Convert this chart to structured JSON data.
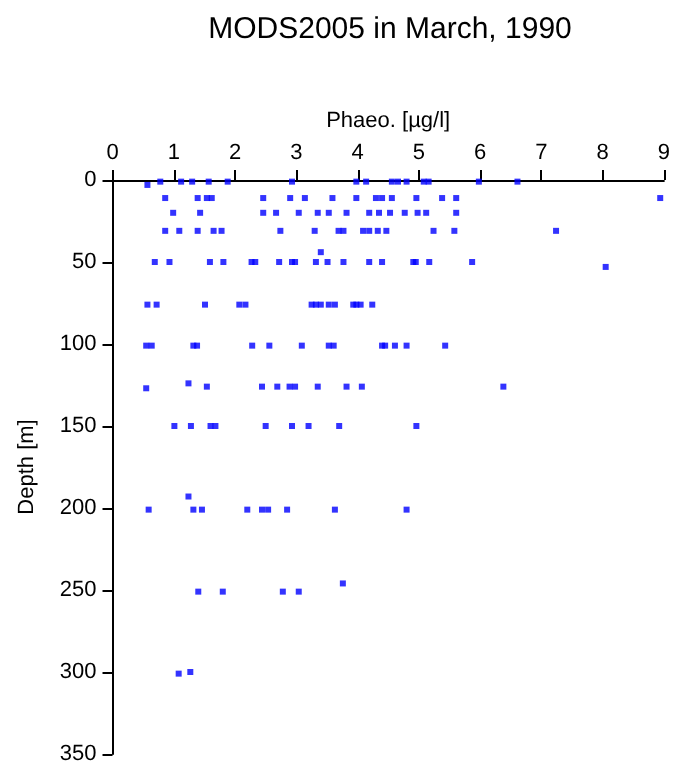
{
  "chart_data": {
    "type": "scatter",
    "title": "MODS2005 in March, 1990",
    "xlabel": "Phaeo. [µg/l]",
    "ylabel": "Depth [m]",
    "xlim": [
      0,
      9
    ],
    "xticks": [
      0,
      1,
      2,
      3,
      4,
      5,
      6,
      7,
      8,
      9
    ],
    "ylim": [
      350,
      0
    ],
    "yticks": [
      0,
      50,
      100,
      150,
      200,
      250,
      300,
      350
    ],
    "grid": false,
    "marker": "square",
    "series": [
      {
        "color": "#0000ff",
        "x": [
          0.57,
          0.78,
          1.12,
          1.3,
          1.57,
          1.88,
          2.93,
          3.98,
          4.14,
          4.56,
          4.66,
          4.8,
          5.08,
          5.16,
          5.98,
          6.61,
          0.86,
          1.39,
          1.54,
          1.62,
          2.46,
          2.9,
          3.14,
          3.59,
          3.98,
          4.3,
          4.4,
          4.56,
          4.96,
          5.38,
          5.61,
          8.94,
          0.99,
          1.43,
          2.46,
          2.67,
          3.04,
          3.35,
          3.53,
          3.82,
          4.19,
          4.35,
          4.53,
          4.77,
          4.98,
          5.12,
          5.61,
          0.86,
          1.09,
          1.39,
          1.65,
          1.78,
          2.74,
          3.3,
          3.69,
          3.77,
          4.09,
          4.19,
          4.33,
          4.47,
          5.24,
          5.58,
          7.24,
          3.4,
          0.69,
          0.93,
          1.59,
          1.81,
          2.27,
          2.33,
          2.72,
          2.93,
          2.98,
          3.32,
          3.51,
          3.77,
          4.19,
          4.4,
          4.91,
          4.95,
          5.17,
          5.87,
          8.05,
          0.57,
          0.72,
          1.51,
          2.07,
          2.17,
          3.25,
          3.32,
          3.4,
          3.53,
          3.63,
          3.93,
          3.98,
          4.05,
          4.24,
          0.55,
          0.64,
          1.32,
          1.38,
          2.28,
          2.56,
          3.09,
          3.53,
          3.61,
          4.4,
          4.45,
          4.61,
          4.8,
          5.43,
          0.55,
          1.24,
          1.54,
          2.44,
          2.69,
          2.89,
          2.98,
          3.35,
          3.82,
          4.07,
          6.38,
          1.01,
          1.28,
          1.6,
          1.68,
          2.5,
          2.93,
          3.2,
          3.7,
          4.96,
          1.24,
          0.59,
          1.32,
          1.46,
          2.2,
          2.44,
          2.54,
          2.85,
          3.63,
          4.8,
          3.76,
          1.4,
          1.8,
          2.78,
          3.04,
          1.08,
          1.27
        ],
        "values": [
          3,
          1,
          1,
          1,
          1,
          1,
          1,
          1,
          1,
          1,
          1,
          1,
          1,
          1,
          1,
          1,
          11,
          11,
          11,
          11,
          11,
          11,
          11,
          11,
          11,
          11,
          11,
          11,
          11,
          11,
          11,
          11,
          20,
          20,
          20,
          20,
          20,
          20,
          20,
          20,
          20,
          20,
          20,
          20,
          20,
          20,
          20,
          31,
          31,
          31,
          31,
          31,
          31,
          31,
          31,
          31,
          31,
          31,
          31,
          31,
          31,
          31,
          31,
          44,
          50,
          50,
          50,
          50,
          50,
          50,
          50,
          50,
          50,
          50,
          50,
          50,
          50,
          50,
          50,
          50,
          50,
          50,
          53,
          76,
          76,
          76,
          76,
          76,
          76,
          76,
          76,
          76,
          76,
          76,
          76,
          76,
          76,
          101,
          101,
          101,
          101,
          101,
          101,
          101,
          101,
          101,
          101,
          101,
          101,
          101,
          101,
          127,
          124,
          126,
          126,
          126,
          126,
          126,
          126,
          126,
          126,
          126,
          150,
          150,
          150,
          150,
          150,
          150,
          150,
          150,
          150,
          193,
          201,
          201,
          201,
          201,
          201,
          201,
          201,
          201,
          201,
          246,
          251,
          251,
          251,
          251,
          301,
          300
        ]
      }
    ]
  }
}
